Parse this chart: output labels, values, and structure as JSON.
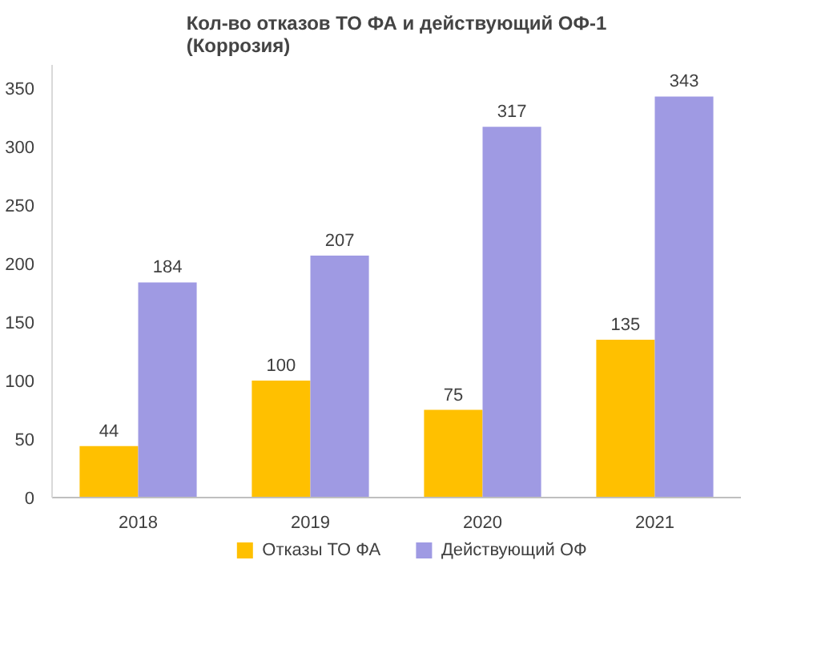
{
  "chart_data": {
    "type": "bar",
    "title": "Кол-во отказов ТО ФА и действующий ОФ-1\n(Коррозия)",
    "categories": [
      "2018",
      "2019",
      "2020",
      "2021"
    ],
    "series": [
      {
        "name": "Отказы ТО ФА",
        "color": "#ffc000",
        "values": [
          44,
          100,
          75,
          135
        ]
      },
      {
        "name": "Действующий ОФ",
        "color": "#9f9ae3",
        "values": [
          184,
          207,
          317,
          343
        ]
      }
    ],
    "ylim": [
      0,
      370
    ],
    "yticks": [
      0,
      50,
      100,
      150,
      200,
      250,
      300,
      350
    ],
    "grid": false,
    "legend": "bottom",
    "data_labels": true
  }
}
